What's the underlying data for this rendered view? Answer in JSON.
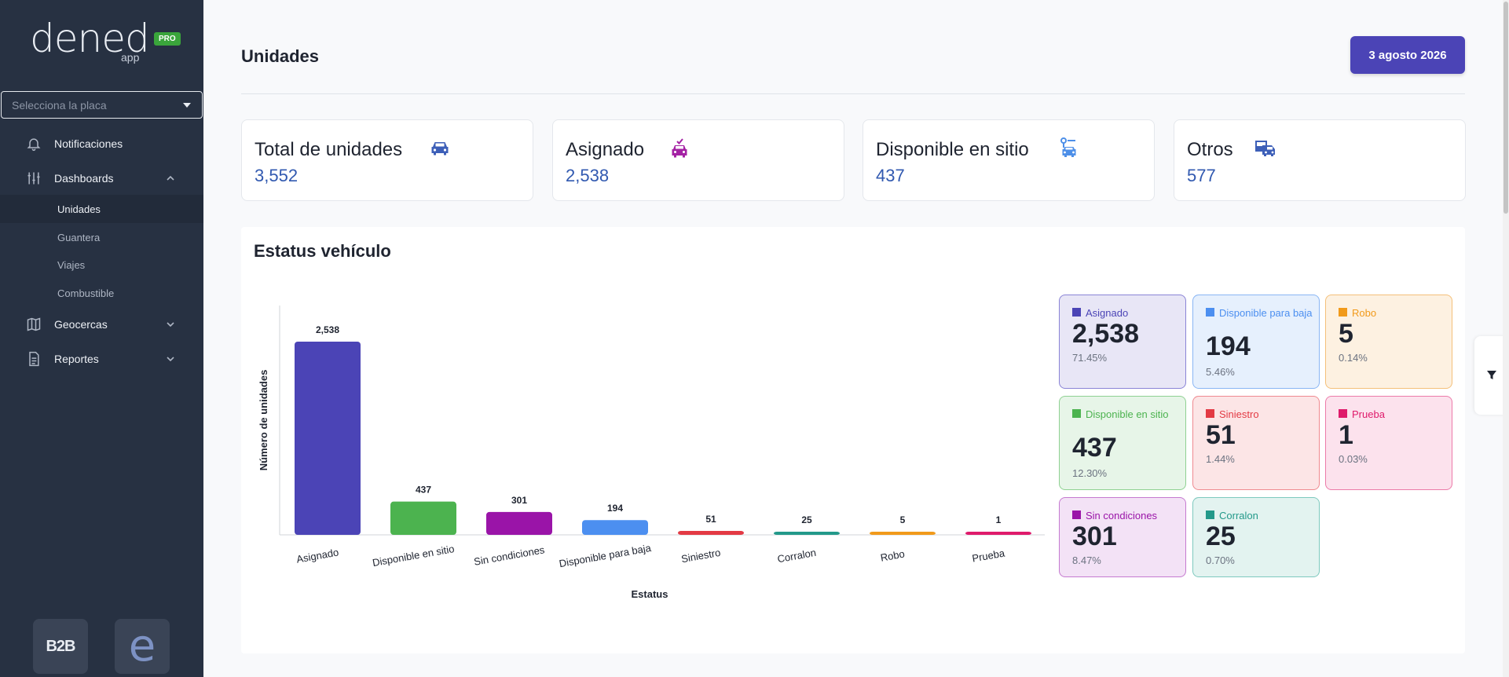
{
  "brand": {
    "name": "dened",
    "sub": "app",
    "badge": "PRO"
  },
  "sidebar": {
    "plate_placeholder": "Selecciona la placa",
    "items": [
      {
        "label": "Notificaciones",
        "icon": "bell-icon"
      },
      {
        "label": "Dashboards",
        "icon": "sliders-icon",
        "expanded": true,
        "children": [
          "Unidades",
          "Guantera",
          "Viajes",
          "Combustible"
        ],
        "active_child": "Unidades"
      },
      {
        "label": "Geocercas",
        "icon": "map-icon"
      },
      {
        "label": "Reportes",
        "icon": "document-icon"
      }
    ],
    "bottom_logos": [
      "B2B",
      "e"
    ]
  },
  "header": {
    "title": "Unidades",
    "date": "3 agosto 2026"
  },
  "stats": [
    {
      "title": "Total de unidades",
      "value": "3,552",
      "icon": "car-icon",
      "color": "#3d5fb8"
    },
    {
      "title": "Asignado",
      "value": "2,538",
      "icon": "car-check-icon",
      "color": "#a422a4"
    },
    {
      "title": "Disponible en sitio",
      "value": "437",
      "icon": "car-parked-icon",
      "color": "#4d8fe8"
    },
    {
      "title": "Otros",
      "value": "577",
      "icon": "truck-icon",
      "color": "#3d5fb8"
    }
  ],
  "chart_section": {
    "title": "Estatus vehículo"
  },
  "chart_data": {
    "type": "bar",
    "xlabel": "Estatus",
    "ylabel": "Número de unidades",
    "categories": [
      "Asignado",
      "Disponible en sitio",
      "Sin condiciones",
      "Disponible para baja",
      "Siniestro",
      "Corralon",
      "Robo",
      "Prueba"
    ],
    "values": [
      2538,
      437,
      301,
      194,
      51,
      25,
      5,
      1
    ],
    "value_labels": [
      "2,538",
      "437",
      "301",
      "194",
      "51",
      "25",
      "5",
      "1"
    ],
    "colors": [
      "#4b44b6",
      "#4cb34f",
      "#9a14a8",
      "#4c8ff0",
      "#e33a44",
      "#23998a",
      "#f19a1a",
      "#df1a6b"
    ],
    "grid": false
  },
  "legend_cards": [
    {
      "label": "Asignado",
      "value": "2,538",
      "pct": "71.45%",
      "color": "#4b44b6",
      "bg": "#e8e6f6",
      "border": "#8a84d6"
    },
    {
      "label": "Disponible para baja",
      "value": "194",
      "pct": "5.46%",
      "color": "#4c8ff0",
      "bg": "#e6f0fd",
      "border": "#8ab6f4"
    },
    {
      "label": "Robo",
      "value": "5",
      "pct": "0.14%",
      "color": "#f19a1a",
      "bg": "#fdf1e1",
      "border": "#f4c07a"
    },
    {
      "label": "Disponible en sitio",
      "value": "437",
      "pct": "12.30%",
      "color": "#4cb34f",
      "bg": "#e7f5e8",
      "border": "#8fd192"
    },
    {
      "label": "Siniestro",
      "value": "51",
      "pct": "1.44%",
      "color": "#e33a44",
      "bg": "#fce5e6",
      "border": "#ef8a90"
    },
    {
      "label": "Prueba",
      "value": "1",
      "pct": "0.03%",
      "color": "#df1a6b",
      "bg": "#fce2ed",
      "border": "#ec7ba9"
    },
    {
      "label": "Sin condiciones",
      "value": "301",
      "pct": "8.47%",
      "color": "#9a14a8",
      "bg": "#f3e2f6",
      "border": "#c57ad0"
    },
    {
      "label": "Corralon",
      "value": "25",
      "pct": "0.70%",
      "color": "#23998a",
      "bg": "#e3f3f0",
      "border": "#7ec9be"
    }
  ]
}
